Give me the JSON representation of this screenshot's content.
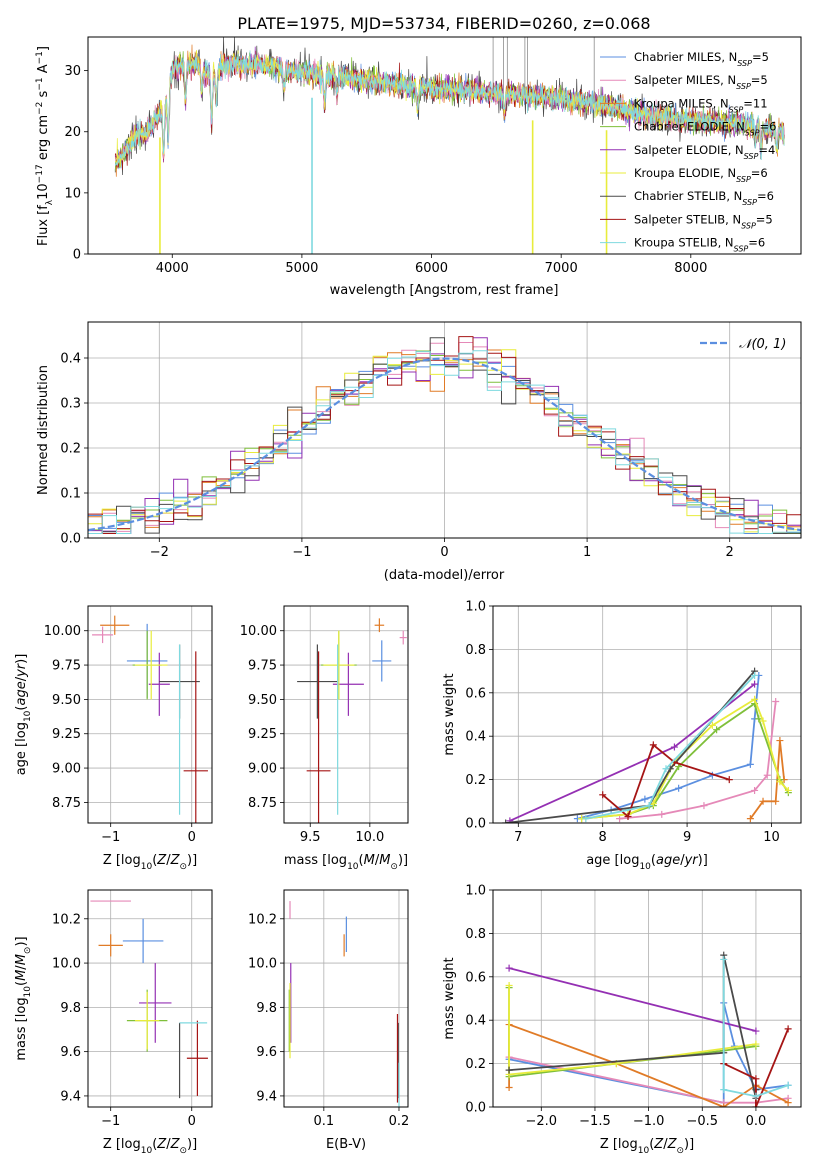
{
  "title": "PLATE=1975, MJD=53734, FIBERID=0260, z=0.068",
  "colors": {
    "Chabrier MILES": "#5b8fe0",
    "Salpeter MILES": "#e589b8",
    "Kroupa MILES": "#e07b27",
    "Chabrier ELODIE": "#7fbf3a",
    "Salpeter ELODIE": "#9430b3",
    "Kroupa ELODIE": "#e8ec3c",
    "Chabrier STELIB": "#4a4a4a",
    "Salpeter STELIB": "#a51515",
    "Kroupa STELIB": "#7fd9df",
    "gaussian": "#5b8fe0"
  },
  "chart_data": [
    {
      "id": "spectrum",
      "type": "line",
      "title": "PLATE=1975, MJD=53734, FIBERID=0260, z=0.068",
      "xlabel": "wavelength [Angstrom, rest frame]",
      "ylabel": "Flux [f_λ 10^-17 erg cm^-2 s^-1 A^-1]",
      "xlim": [
        3350,
        8850
      ],
      "ylim": [
        0,
        35.5
      ],
      "xticks": [
        4000,
        5000,
        6000,
        7000,
        8000
      ],
      "yticks": [
        0,
        10,
        20,
        30
      ],
      "grid": false,
      "legend_position": "top-right",
      "legend": [
        {
          "label": "Chabrier MILES, N",
          "sub": "SSP",
          "suffix": "=5"
        },
        {
          "label": "Salpeter MILES, N",
          "sub": "SSP",
          "suffix": "=5"
        },
        {
          "label": "Kroupa MILES, N",
          "sub": "SSP",
          "suffix": "=11"
        },
        {
          "label": "Chabrier ELODIE, N",
          "sub": "SSP",
          "suffix": "=6"
        },
        {
          "label": "Salpeter ELODIE, N",
          "sub": "SSP",
          "suffix": "=4"
        },
        {
          "label": "Kroupa ELODIE, N",
          "sub": "SSP",
          "suffix": "=6"
        },
        {
          "label": "Chabrier STELIB, N",
          "sub": "SSP",
          "suffix": "=6"
        },
        {
          "label": "Salpeter STELIB, N",
          "sub": "SSP",
          "suffix": "=5"
        },
        {
          "label": "Kroupa STELIB, N",
          "sub": "SSP",
          "suffix": "=6"
        }
      ],
      "continuum": {
        "x": [
          3560,
          3650,
          3700,
          3800,
          3880,
          3950,
          4000,
          4100,
          4200,
          4300,
          4400,
          4500,
          4700,
          4900,
          5100,
          5300,
          5500,
          5800,
          6100,
          6400,
          6700,
          7000,
          7300,
          7600,
          7900,
          8200,
          8500,
          8700
        ],
        "y": [
          15,
          17,
          19,
          20,
          22,
          25,
          30,
          31,
          31,
          29,
          31,
          31,
          31,
          30,
          29.5,
          29,
          28.5,
          27.5,
          27,
          26.5,
          26,
          25.5,
          24.5,
          23,
          22,
          21.5,
          21,
          20
        ]
      },
      "absorption_lines": [
        {
          "x": 3934,
          "depth": 9
        },
        {
          "x": 3969,
          "depth": 8
        },
        {
          "x": 4102,
          "depth": 6
        },
        {
          "x": 4227,
          "depth": 4
        },
        {
          "x": 4304,
          "depth": 8
        },
        {
          "x": 4340,
          "depth": 5
        },
        {
          "x": 4861,
          "depth": 3
        },
        {
          "x": 5175,
          "depth": 5
        },
        {
          "x": 5270,
          "depth": 3
        },
        {
          "x": 5893,
          "depth": 4
        },
        {
          "x": 6563,
          "depth": 3
        },
        {
          "x": 8498,
          "depth": 3
        },
        {
          "x": 8542,
          "depth": 4
        },
        {
          "x": 8662,
          "depth": 3
        }
      ],
      "masked_spikes_down": [
        3905,
        5078,
        6780,
        7350
      ],
      "masked_spikes_up": [
        6475,
        6555,
        6585,
        6720,
        6740,
        7255
      ]
    },
    {
      "id": "residuals",
      "type": "histogram",
      "xlabel": "(data-model)/error",
      "ylabel": "Normed distribution",
      "xlim": [
        -2.5,
        2.5
      ],
      "ylim": [
        0,
        0.48
      ],
      "xticks": [
        -2,
        -1,
        0,
        1,
        2
      ],
      "yticks": [
        0.0,
        0.1,
        0.2,
        0.3,
        0.4
      ],
      "grid": true,
      "legend_position": "top-right",
      "legend": [
        {
          "label": "𝒩(0, 1)"
        }
      ],
      "bin_width": 0.1
    },
    {
      "id": "age-vs-Z",
      "type": "errorbar",
      "xlabel": "Z [log10(Z/Z⊙)]",
      "ylabel": "age [log10(age/yr)]",
      "xlim": [
        -1.28,
        0.25
      ],
      "ylim": [
        8.6,
        10.18
      ],
      "xticks": [
        -1,
        0
      ],
      "yticks": [
        8.75,
        9.0,
        9.25,
        9.5,
        9.75,
        10.0
      ],
      "points": [
        {
          "model": "Chabrier MILES",
          "x": -0.55,
          "y": 9.78,
          "xerr": 0.25,
          "yerr": 0.27
        },
        {
          "model": "Salpeter MILES",
          "x": -1.1,
          "y": 9.97,
          "xerr": 0.13,
          "yerr": 0.06
        },
        {
          "model": "Kroupa MILES",
          "x": -0.95,
          "y": 10.04,
          "xerr": 0.18,
          "yerr": 0.07
        },
        {
          "model": "Chabrier ELODIE",
          "x": -0.55,
          "y": 9.75,
          "xerr": 0.18,
          "yerr": 0.25
        },
        {
          "model": "Salpeter ELODIE",
          "x": -0.4,
          "y": 9.61,
          "xerr": 0.13,
          "yerr": 0.23
        },
        {
          "model": "Kroupa ELODIE",
          "x": -0.5,
          "y": 9.75,
          "xerr": 0.2,
          "yerr": 0.25
        },
        {
          "model": "Chabrier STELIB",
          "x": -0.15,
          "y": 9.63,
          "xerr": 0.25,
          "yerr": 0.27
        },
        {
          "model": "Salpeter STELIB",
          "x": 0.05,
          "y": 8.98,
          "xerr": 0.15,
          "yerr": 0.87
        },
        {
          "model": "Kroupa STELIB",
          "x": -0.15,
          "y": 9.28,
          "xerr": 0.0,
          "yerr": 0.62
        }
      ]
    },
    {
      "id": "age-vs-mass",
      "type": "errorbar",
      "xlabel": "mass [log10(M/M⊙)]",
      "ylabel": "",
      "xlim": [
        9.28,
        10.32
      ],
      "ylim": [
        8.6,
        10.18
      ],
      "xticks": [
        9.5,
        10.0
      ],
      "yticks": [
        8.75,
        9.0,
        9.25,
        9.5,
        9.75,
        10.0
      ],
      "points": [
        {
          "model": "Chabrier MILES",
          "x": 10.1,
          "y": 9.78,
          "xerr": 0.08,
          "yerr": 0.15
        },
        {
          "model": "Salpeter MILES",
          "x": 10.28,
          "y": 9.95,
          "xerr": 0.03,
          "yerr": 0.05
        },
        {
          "model": "Kroupa MILES",
          "x": 10.08,
          "y": 10.04,
          "xerr": 0.04,
          "yerr": 0.05
        },
        {
          "model": "Chabrier ELODIE",
          "x": 9.74,
          "y": 9.75,
          "xerr": 0.15,
          "yerr": 0.25
        },
        {
          "model": "Salpeter ELODIE",
          "x": 9.82,
          "y": 9.61,
          "xerr": 0.13,
          "yerr": 0.23
        },
        {
          "model": "Kroupa ELODIE",
          "x": 9.74,
          "y": 9.75,
          "xerr": 0.13,
          "yerr": 0.25
        },
        {
          "model": "Chabrier STELIB",
          "x": 9.56,
          "y": 9.63,
          "xerr": 0.17,
          "yerr": 0.27
        },
        {
          "model": "Salpeter STELIB",
          "x": 9.57,
          "y": 8.98,
          "xerr": 0.1,
          "yerr": 0.87
        },
        {
          "model": "Kroupa STELIB",
          "x": 9.73,
          "y": 9.28,
          "xerr": 0.0,
          "yerr": 0.62
        }
      ]
    },
    {
      "id": "mass-vs-Z",
      "type": "errorbar",
      "xlabel": "Z [log10(Z/Z⊙)]",
      "ylabel": "mass [log10(M/M⊙)]",
      "xlim": [
        -1.28,
        0.25
      ],
      "ylim": [
        9.35,
        10.33
      ],
      "xticks": [
        -1,
        0
      ],
      "yticks": [
        9.4,
        9.6,
        9.8,
        10.0,
        10.2
      ],
      "points": [
        {
          "model": "Chabrier MILES",
          "x": -0.6,
          "y": 10.1,
          "xerr": 0.25,
          "yerr": 0.1
        },
        {
          "model": "Salpeter MILES",
          "x": -1.0,
          "y": 10.28,
          "xerr": 0.25,
          "yerr": 0.0
        },
        {
          "model": "Kroupa MILES",
          "x": -1.0,
          "y": 10.08,
          "xerr": 0.15,
          "yerr": 0.05
        },
        {
          "model": "Chabrier ELODIE",
          "x": -0.55,
          "y": 9.74,
          "xerr": 0.25,
          "yerr": 0.14
        },
        {
          "model": "Salpeter ELODIE",
          "x": -0.45,
          "y": 9.82,
          "xerr": 0.2,
          "yerr": 0.18
        },
        {
          "model": "Kroupa ELODIE",
          "x": -0.55,
          "y": 9.74,
          "xerr": 0.15,
          "yerr": 0.13
        },
        {
          "model": "Chabrier STELIB",
          "x": -0.15,
          "y": 9.56,
          "xerr": 0.0,
          "yerr": 0.17
        },
        {
          "model": "Salpeter STELIB",
          "x": 0.07,
          "y": 9.57,
          "xerr": 0.13,
          "yerr": 0.17
        },
        {
          "model": "Kroupa STELIB",
          "x": 0.02,
          "y": 9.73,
          "xerr": 0.17,
          "yerr": 0.0
        }
      ]
    },
    {
      "id": "mass-vs-EBV",
      "type": "errorbar",
      "xlabel": "E(B-V)",
      "ylabel": "",
      "xlim": [
        0.047,
        0.212
      ],
      "ylim": [
        9.35,
        10.33
      ],
      "xticks": [
        0.1,
        0.2
      ],
      "yticks": [
        9.4,
        9.6,
        9.8,
        10.0,
        10.2
      ],
      "points": [
        {
          "model": "Chabrier MILES",
          "x": 0.13,
          "y": 10.13,
          "xerr": 0.0,
          "yerr": 0.08
        },
        {
          "model": "Salpeter MILES",
          "x": 0.055,
          "y": 10.24,
          "xerr": 0.0,
          "yerr": 0.04
        },
        {
          "model": "Kroupa MILES",
          "x": 0.127,
          "y": 10.08,
          "xerr": 0.0,
          "yerr": 0.05
        },
        {
          "model": "Chabrier ELODIE",
          "x": 0.054,
          "y": 9.74,
          "xerr": 0.0,
          "yerr": 0.14
        },
        {
          "model": "Salpeter ELODIE",
          "x": 0.056,
          "y": 9.82,
          "xerr": 0.0,
          "yerr": 0.18
        },
        {
          "model": "Kroupa ELODIE",
          "x": 0.055,
          "y": 9.74,
          "xerr": 0.0,
          "yerr": 0.17
        },
        {
          "model": "Chabrier STELIB",
          "x": 0.199,
          "y": 9.56,
          "xerr": 0.0,
          "yerr": 0.17
        },
        {
          "model": "Salpeter STELIB",
          "x": 0.198,
          "y": 9.57,
          "xerr": 0.0,
          "yerr": 0.2
        },
        {
          "model": "Kroupa STELIB",
          "x": 0.2,
          "y": 9.45,
          "xerr": 0.0,
          "yerr": 0.1
        }
      ]
    },
    {
      "id": "weight-vs-age",
      "type": "line",
      "xlabel": "age [log10(age/yr)]",
      "ylabel": "mass weight",
      "xlim": [
        6.7,
        10.35
      ],
      "ylim": [
        0,
        1.0
      ],
      "xticks": [
        7,
        8,
        9,
        10
      ],
      "yticks": [
        0.0,
        0.2,
        0.4,
        0.6,
        0.8,
        1.0
      ],
      "grid": true,
      "series": [
        {
          "model": "Chabrier MILES",
          "x": [
            7.7,
            8.1,
            8.5,
            8.9,
            9.3,
            9.75,
            9.8,
            9.85
          ],
          "y": [
            0.02,
            0.06,
            0.11,
            0.16,
            0.22,
            0.27,
            0.48,
            0.68
          ]
        },
        {
          "model": "Salpeter MILES",
          "x": [
            8.2,
            8.7,
            9.2,
            9.8,
            9.95,
            10.05
          ],
          "y": [
            0.02,
            0.04,
            0.08,
            0.15,
            0.22,
            0.56
          ]
        },
        {
          "model": "Kroupa MILES",
          "x": [
            9.75,
            9.9,
            10.05,
            10.1,
            10.15
          ],
          "y": [
            0.02,
            0.1,
            0.1,
            0.38,
            0.2
          ]
        },
        {
          "model": "Chabrier ELODIE",
          "x": [
            7.75,
            8.3,
            8.6,
            8.9,
            9.35,
            9.8,
            9.85,
            10.1,
            10.2
          ],
          "y": [
            0.02,
            0.04,
            0.08,
            0.26,
            0.43,
            0.55,
            0.48,
            0.2,
            0.14
          ]
        },
        {
          "model": "Salpeter ELODIE",
          "x": [
            6.9,
            8.85,
            9.8
          ],
          "y": [
            0.01,
            0.35,
            0.64
          ]
        },
        {
          "model": "Kroupa ELODIE",
          "x": [
            7.75,
            8.3,
            8.6,
            8.85,
            9.3,
            9.8,
            9.9,
            10.1,
            10.2
          ],
          "y": [
            0.02,
            0.04,
            0.09,
            0.28,
            0.45,
            0.57,
            0.47,
            0.19,
            0.15
          ]
        },
        {
          "model": "Chabrier STELIB",
          "x": [
            6.85,
            8.55,
            8.8,
            9.8
          ],
          "y": [
            0.0,
            0.08,
            0.25,
            0.7
          ]
        },
        {
          "model": "Salpeter STELIB",
          "x": [
            8.0,
            8.3,
            8.6,
            8.85,
            9.5
          ],
          "y": [
            0.13,
            0.03,
            0.36,
            0.28,
            0.2
          ]
        },
        {
          "model": "Kroupa STELIB",
          "x": [
            7.8,
            8.55,
            8.75,
            9.8
          ],
          "y": [
            0.02,
            0.08,
            0.25,
            0.68
          ]
        }
      ]
    },
    {
      "id": "weight-vs-Z",
      "type": "line",
      "xlabel": "Z [log10(Z/Z⊙)]",
      "ylabel": "mass weight",
      "xlim": [
        -2.45,
        0.42
      ],
      "ylim": [
        0,
        1.0
      ],
      "xticks": [
        -2.0,
        -1.5,
        -1.0,
        -0.5,
        0.0
      ],
      "yticks": [
        0.0,
        0.2,
        0.4,
        0.6,
        0.8,
        1.0
      ],
      "grid": true,
      "series": [
        {
          "model": "Chabrier MILES",
          "x": [
            -2.3,
            -0.3,
            -0.3,
            -0.2,
            0.0,
            0.3
          ],
          "y": [
            0.22,
            0.02,
            0.48,
            0.28,
            0.08,
            0.1
          ]
        },
        {
          "model": "Salpeter MILES",
          "x": [
            -2.3,
            -0.3,
            0.0,
            0.3
          ],
          "y": [
            0.23,
            0.02,
            0.02,
            0.04
          ]
        },
        {
          "model": "Kroupa MILES",
          "x": [
            -2.3,
            -2.3,
            -1.3,
            -0.3,
            0.0,
            0.3
          ],
          "y": [
            0.09,
            0.38,
            0.2,
            0.0,
            0.1,
            0.02
          ]
        },
        {
          "model": "Chabrier ELODIE",
          "x": [
            -2.3,
            -2.3,
            -0.3,
            0.0
          ],
          "y": [
            0.55,
            0.14,
            0.26,
            0.28
          ]
        },
        {
          "model": "Salpeter ELODIE",
          "x": [
            -2.3,
            0.0
          ],
          "y": [
            0.64,
            0.35
          ]
        },
        {
          "model": "Kroupa ELODIE",
          "x": [
            -2.3,
            -2.3,
            -1.3,
            0.0
          ],
          "y": [
            0.56,
            0.15,
            0.2,
            0.29
          ]
        },
        {
          "model": "Chabrier STELIB",
          "x": [
            -2.3,
            -0.3,
            -0.3,
            0.0,
            0.0
          ],
          "y": [
            0.17,
            0.25,
            0.7,
            0.04,
            0.08
          ]
        },
        {
          "model": "Salpeter STELIB",
          "x": [
            -0.3,
            0.0,
            0.0,
            0.3
          ],
          "y": [
            0.2,
            0.13,
            0.0,
            0.36
          ]
        },
        {
          "model": "Kroupa STELIB",
          "x": [
            -0.3,
            -0.3,
            0.0,
            0.3
          ],
          "y": [
            0.68,
            0.08,
            0.05,
            0.1
          ]
        }
      ]
    }
  ]
}
